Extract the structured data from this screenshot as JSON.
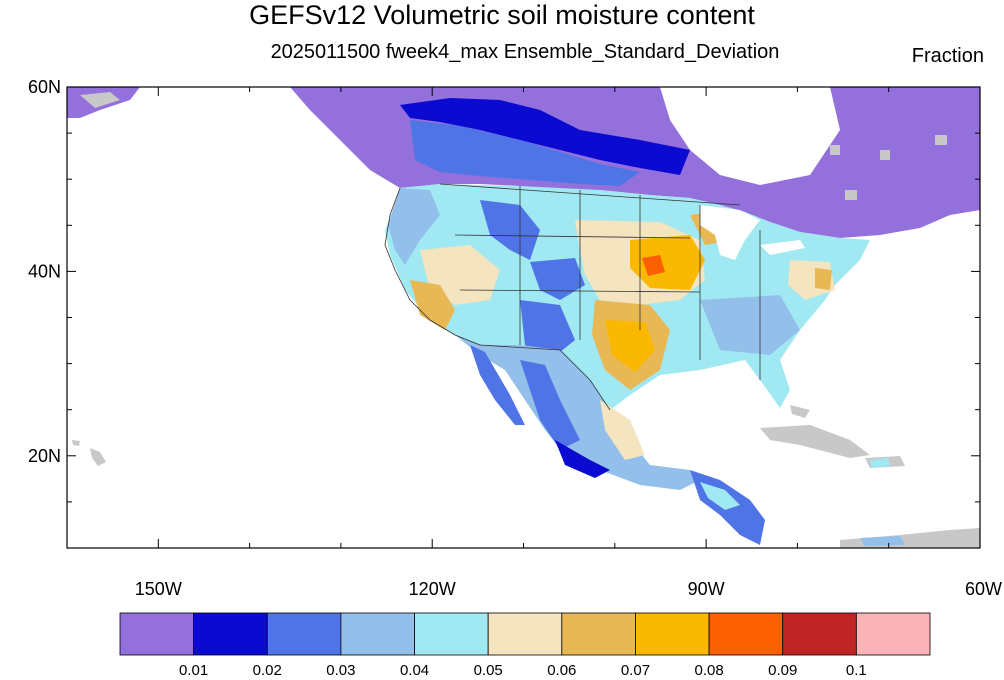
{
  "title": "GEFSv12 Volumetric soil moisture content",
  "subtitle": "2025011500 fweek4_max Ensemble_Standard_Deviation",
  "units": "Fraction",
  "map": {
    "lon_range": [
      -160,
      -60
    ],
    "lat_range": [
      10,
      60
    ],
    "lat_ticks": [
      {
        "value": 60,
        "label": "60N"
      },
      {
        "value": 40,
        "label": "40N"
      },
      {
        "value": 20,
        "label": "20N"
      }
    ],
    "lon_ticks": [
      {
        "value": -150,
        "label": "150W"
      },
      {
        "value": -120,
        "label": "120W"
      },
      {
        "value": -90,
        "label": "90W"
      },
      {
        "value": -60,
        "label": "60W"
      }
    ],
    "missing_color": "#c8c8c8"
  },
  "colorbar": {
    "colors": [
      "#9370db",
      "#0a0ad0",
      "#4f74e6",
      "#92c0ea",
      "#a0e8f2",
      "#f4e4c0",
      "#e8b855",
      "#fbb800",
      "#fb5f00",
      "#c02424",
      "#fcb3b8"
    ],
    "labels": [
      "0.01",
      "0.02",
      "0.03",
      "0.04",
      "0.05",
      "0.06",
      "0.07",
      "0.08",
      "0.09",
      "0.1"
    ]
  }
}
